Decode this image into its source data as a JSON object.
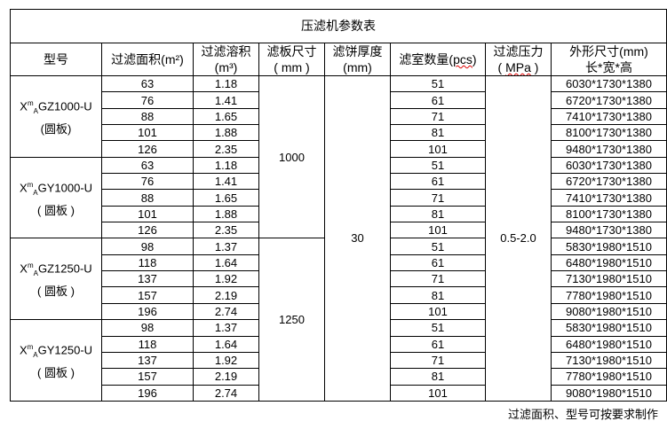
{
  "title": "压滤机参数表",
  "headers": {
    "model": "型号",
    "area": "过滤面积(m²)",
    "volume_1": "过滤溶积",
    "volume_2": "(m³)",
    "plate_1": "滤板尺寸",
    "plate_2": "( mm )",
    "cake_1": "滤饼厚度",
    "cake_2": "(mm)",
    "chambers_1": "滤室数量(",
    "chambers_unit": "pcs",
    "chambers_2": ")",
    "pressure_1": "过滤压力",
    "pressure_open": "( ",
    "pressure_unit": "MPa",
    "pressure_close": " )",
    "dims_1": "外形尺寸(mm)",
    "dims_2": "长*宽*高"
  },
  "cake_thickness": "30",
  "pressure": "0.5-2.0",
  "plate_sizes": [
    "1000",
    "1250"
  ],
  "groups": [
    {
      "model_prefix": "X",
      "model_sup": "m",
      "model_sub": "A",
      "model_rest": "GZ1000-U",
      "model_note": "(圆板)",
      "rows": [
        [
          "63",
          "1.18",
          "51",
          "6030*1730*1380"
        ],
        [
          "76",
          "1.41",
          "61",
          "6720*1730*1380"
        ],
        [
          "88",
          "1.65",
          "71",
          "7410*1730*1380"
        ],
        [
          "101",
          "1.88",
          "81",
          "8100*1730*1380"
        ],
        [
          "126",
          "2.35",
          "101",
          "9480*1730*1380"
        ]
      ]
    },
    {
      "model_prefix": "X",
      "model_sup": "m",
      "model_sub": "A",
      "model_rest": "GY1000-U",
      "model_note": "( 圆板 )",
      "rows": [
        [
          "63",
          "1.18",
          "51",
          "6030*1730*1380"
        ],
        [
          "76",
          "1.41",
          "61",
          "6720*1730*1380"
        ],
        [
          "88",
          "1.65",
          "71",
          "7410*1730*1380"
        ],
        [
          "101",
          "1.88",
          "81",
          "8100*1730*1380"
        ],
        [
          "126",
          "2.35",
          "101",
          "9480*1730*1380"
        ]
      ]
    },
    {
      "model_prefix": "X",
      "model_sup": "m",
      "model_sub": "A",
      "model_rest": "GZ1250-U",
      "model_note": "( 圆板 )",
      "rows": [
        [
          "98",
          "1.37",
          "51",
          "5830*1980*1510"
        ],
        [
          "118",
          "1.64",
          "61",
          "6480*1980*1510"
        ],
        [
          "137",
          "1.92",
          "71",
          "7130*1980*1510"
        ],
        [
          "157",
          "2.19",
          "81",
          "7780*1980*1510"
        ],
        [
          "196",
          "2.74",
          "101",
          "9080*1980*1510"
        ]
      ]
    },
    {
      "model_prefix": "X",
      "model_sup": "m",
      "model_sub": "A",
      "model_rest": "GY1250-U",
      "model_note": "( 圆板 )",
      "rows": [
        [
          "98",
          "1.37",
          "51",
          "5830*1980*1510"
        ],
        [
          "118",
          "1.64",
          "61",
          "6480*1980*1510"
        ],
        [
          "137",
          "1.92",
          "71",
          "7130*1980*1510"
        ],
        [
          "157",
          "2.19",
          "81",
          "7780*1980*1510"
        ],
        [
          "196",
          "2.74",
          "101",
          "9080*1980*1510"
        ]
      ]
    }
  ],
  "footnote": "过滤面积、型号可按要求制作"
}
